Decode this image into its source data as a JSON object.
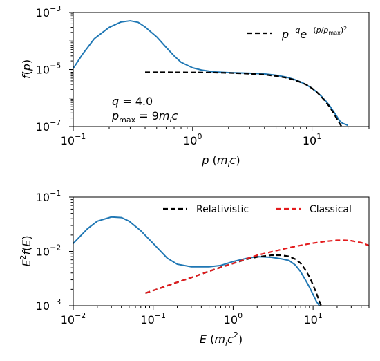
{
  "chart_data": [
    {
      "type": "line",
      "title": "",
      "xlabel": "p (m_i c)",
      "ylabel": "f(p)",
      "xscale": "log",
      "yscale": "log",
      "xlim": [
        0.1,
        30
      ],
      "ylim": [
        1e-07,
        0.001
      ],
      "x_ticks": [
        "10^-1",
        "10^0",
        "10^1"
      ],
      "y_ticks": [
        "10^-7",
        "10^-5",
        "10^-3"
      ],
      "legend": {
        "position": "top-right",
        "entries": [
          "p^-q e^-(p/p_max)^2"
        ]
      },
      "annotations": [
        "q = 4.0",
        "p_max = 9 m_i c"
      ],
      "series": [
        {
          "name": "",
          "color": "#1f77b4",
          "style": "solid",
          "x": [
            0.1,
            0.12,
            0.15,
            0.2,
            0.25,
            0.3,
            0.35,
            0.4,
            0.5,
            0.6,
            0.7,
            0.8,
            1.0,
            1.2,
            1.5,
            2.0,
            3.0,
            4.0,
            5.0,
            6.0,
            7.0,
            8.0,
            9.0,
            10.0,
            11.0,
            12.0,
            13.0,
            14.0,
            15.0,
            16.0,
            17.0,
            18.0,
            19.0,
            20.0
          ],
          "y": [
            1.1e-05,
            3.5e-05,
            0.00012,
            0.0003,
            0.00046,
            0.00051,
            0.00045,
            0.00031,
            0.00014,
            6e-05,
            3e-05,
            1.8e-05,
            1.15e-05,
            9.5e-06,
            8.3e-06,
            7.8e-06,
            7.4e-06,
            7e-06,
            6.3e-06,
            5.5e-06,
            4.6e-06,
            3.7e-06,
            2.9e-06,
            2.2e-06,
            1.6e-06,
            1.15e-06,
            8e-07,
            5.5e-07,
            3.6e-07,
            2.4e-07,
            1.6e-07,
            1.3e-07,
            1.2e-07,
            1.1e-07
          ]
        },
        {
          "name": "p^-q e^-(p/p_max)^2",
          "color": "#000000",
          "style": "dashed",
          "x": [
            0.4,
            0.6,
            1.0,
            1.5,
            2.0,
            3.0,
            4.0,
            5.0,
            6.0,
            7.0,
            8.0,
            9.0,
            10.0,
            11.0,
            12.0,
            13.0,
            14.0,
            15.0,
            16.0,
            17.0,
            18.0
          ],
          "y": [
            8e-06,
            8e-06,
            7.9e-06,
            7.8e-06,
            7.6e-06,
            7.1e-06,
            6.6e-06,
            5.9e-06,
            5.2e-06,
            4.4e-06,
            3.6e-06,
            2.9e-06,
            2.2e-06,
            1.6e-06,
            1.1e-06,
            7.5e-07,
            5e-07,
            3.2e-07,
            2e-07,
            1.3e-07,
            9e-08
          ]
        }
      ]
    },
    {
      "type": "line",
      "title": "",
      "xlabel": "E (m_i c^2)",
      "ylabel": "E^2 f(E)",
      "xscale": "log",
      "yscale": "log",
      "xlim": [
        0.01,
        50
      ],
      "ylim": [
        0.001,
        0.1
      ],
      "x_ticks": [
        "10^-2",
        "10^-1",
        "10^0",
        "10^1"
      ],
      "y_ticks": [
        "10^-3",
        "10^-2",
        "10^-1"
      ],
      "legend": {
        "position": "top",
        "entries": [
          "Relativistic",
          "Classical"
        ]
      },
      "series": [
        {
          "name": "",
          "color": "#1f77b4",
          "style": "solid",
          "x": [
            0.01,
            0.015,
            0.02,
            0.03,
            0.04,
            0.05,
            0.07,
            0.1,
            0.15,
            0.2,
            0.3,
            0.5,
            0.7,
            1.0,
            1.5,
            2.0,
            3.0,
            4.0,
            5.0,
            6.0,
            7.0,
            8.0,
            9.0,
            10.0,
            11.0,
            12.0
          ],
          "y": [
            0.014,
            0.026,
            0.036,
            0.043,
            0.042,
            0.036,
            0.024,
            0.014,
            0.0075,
            0.0058,
            0.0052,
            0.0052,
            0.0055,
            0.0065,
            0.0075,
            0.008,
            0.0078,
            0.0073,
            0.0068,
            0.0056,
            0.0042,
            0.003,
            0.0022,
            0.0016,
            0.0012,
            0.001
          ]
        },
        {
          "name": "Relativistic",
          "color": "#000000",
          "style": "dashed",
          "x": [
            0.08,
            0.1,
            0.2,
            0.3,
            0.5,
            0.7,
            1.0,
            1.5,
            2.0,
            3.0,
            4.0,
            5.0,
            6.0,
            7.0,
            8.0,
            9.0,
            10.0,
            11.0,
            12.0,
            13.0
          ],
          "y": [
            0.0017,
            0.0019,
            0.0027,
            0.0033,
            0.0043,
            0.0051,
            0.006,
            0.0072,
            0.0079,
            0.0085,
            0.0085,
            0.0081,
            0.0072,
            0.006,
            0.0046,
            0.0034,
            0.0024,
            0.0017,
            0.0012,
            0.0009
          ]
        },
        {
          "name": "Classical",
          "color": "#e31a1c",
          "style": "dashed",
          "x": [
            0.08,
            0.1,
            0.2,
            0.3,
            0.5,
            1.0,
            2.0,
            3.0,
            5.0,
            8.0,
            10.0,
            15.0,
            20.0,
            25.0,
            30.0,
            40.0,
            50.0
          ],
          "y": [
            0.0017,
            0.0019,
            0.0027,
            0.0033,
            0.0043,
            0.006,
            0.0085,
            0.0098,
            0.0117,
            0.0134,
            0.0142,
            0.0154,
            0.016,
            0.016,
            0.0157,
            0.0145,
            0.0128
          ]
        }
      ]
    }
  ]
}
